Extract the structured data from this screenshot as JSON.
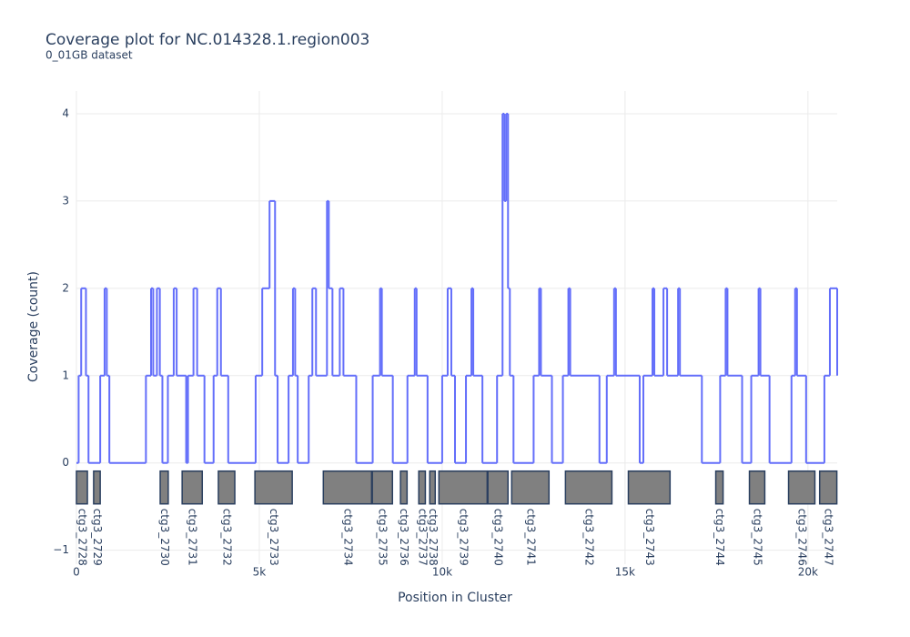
{
  "chart_data": {
    "type": "step",
    "title": "Coverage plot for NC.014328.1.region003",
    "subtitle": "0_01GB dataset",
    "x_label": "Position in Cluster",
    "y_label": "Coverage (count)",
    "xlim": [
      0,
      20800
    ],
    "ylim": [
      -1.16,
      4.26
    ],
    "xticks": [
      0,
      {
        "value": 5000,
        "label": "5k"
      },
      {
        "value": 10000,
        "label": "10k"
      },
      {
        "value": 15000,
        "label": "15k"
      },
      {
        "value": 20000,
        "label": "20k"
      }
    ],
    "yticks": [
      {
        "value": -1,
        "label": "−1"
      },
      0,
      1,
      2,
      3,
      4
    ],
    "grid": true,
    "series": [
      {
        "color": "#636efa",
        "x": [
          0,
          60,
          130,
          260,
          330,
          650,
          770,
          830,
          900,
          1900,
          2040,
          2100,
          2200,
          2280,
          2350,
          2500,
          2660,
          2740,
          3000,
          3050,
          3200,
          3300,
          3500,
          3750,
          3850,
          3950,
          4150,
          4900,
          5080,
          5280,
          5430,
          5500,
          5800,
          5920,
          5980,
          6050,
          6350,
          6450,
          6550,
          6850,
          6900,
          7000,
          7200,
          7300,
          7650,
          8100,
          8300,
          8350,
          8650,
          9050,
          9250,
          9300,
          9600,
          10000,
          10150,
          10250,
          10350,
          10650,
          10800,
          10850,
          11100,
          11500,
          11650,
          11700,
          11750,
          11800,
          11850,
          11950,
          12500,
          12650,
          12700,
          13000,
          13300,
          13450,
          13500,
          14300,
          14500,
          14700,
          14750,
          15400,
          15500,
          15750,
          15800,
          16050,
          16150,
          16450,
          16500,
          17100,
          17600,
          17750,
          17800,
          18200,
          18450,
          18650,
          18700,
          18950,
          19550,
          19650,
          19700,
          19950,
          20450,
          20600,
          20800
        ],
        "values": [
          0,
          1,
          2,
          1,
          0,
          1,
          2,
          1,
          0,
          1,
          2,
          1,
          2,
          1,
          0,
          1,
          2,
          1,
          0,
          1,
          2,
          1,
          0,
          1,
          2,
          1,
          0,
          1,
          2,
          3,
          1,
          0,
          1,
          2,
          1,
          0,
          1,
          2,
          1,
          3,
          2,
          1,
          2,
          1,
          0,
          1,
          2,
          1,
          0,
          1,
          2,
          1,
          0,
          1,
          2,
          1,
          0,
          1,
          2,
          1,
          0,
          1,
          4,
          3,
          4,
          2,
          1,
          0,
          1,
          2,
          1,
          0,
          1,
          2,
          1,
          0,
          1,
          2,
          1,
          0,
          1,
          2,
          1,
          2,
          1,
          2,
          1,
          0,
          1,
          2,
          1,
          0,
          1,
          2,
          1,
          0,
          1,
          2,
          1,
          0,
          1,
          2,
          1
        ]
      }
    ],
    "contigs": [
      {
        "name": "ctg3_2728",
        "start": 0,
        "end": 300
      },
      {
        "name": "ctg3_2729",
        "start": 470,
        "end": 650
      },
      {
        "name": "ctg3_2730",
        "start": 2290,
        "end": 2510
      },
      {
        "name": "ctg3_2731",
        "start": 2890,
        "end": 3440
      },
      {
        "name": "ctg3_2732",
        "start": 3880,
        "end": 4330
      },
      {
        "name": "ctg3_2733",
        "start": 4880,
        "end": 5900
      },
      {
        "name": "ctg3_2734",
        "start": 6750,
        "end": 8070
      },
      {
        "name": "ctg3_2735",
        "start": 8090,
        "end": 8640
      },
      {
        "name": "ctg3_2736",
        "start": 8860,
        "end": 9040
      },
      {
        "name": "ctg3_2737",
        "start": 9360,
        "end": 9540
      },
      {
        "name": "ctg3_2738",
        "start": 9660,
        "end": 9810
      },
      {
        "name": "ctg3_2739",
        "start": 9910,
        "end": 11230
      },
      {
        "name": "ctg3_2740",
        "start": 11250,
        "end": 11800
      },
      {
        "name": "ctg3_2741",
        "start": 11900,
        "end": 12920
      },
      {
        "name": "ctg3_2742",
        "start": 13370,
        "end": 14640
      },
      {
        "name": "ctg3_2743",
        "start": 15090,
        "end": 16230
      },
      {
        "name": "ctg3_2744",
        "start": 17480,
        "end": 17680
      },
      {
        "name": "ctg3_2745",
        "start": 18400,
        "end": 18820
      },
      {
        "name": "ctg3_2746",
        "start": 19470,
        "end": 20190
      },
      {
        "name": "ctg3_2747",
        "start": 20320,
        "end": 20790
      }
    ],
    "contig_color": "#808080"
  }
}
